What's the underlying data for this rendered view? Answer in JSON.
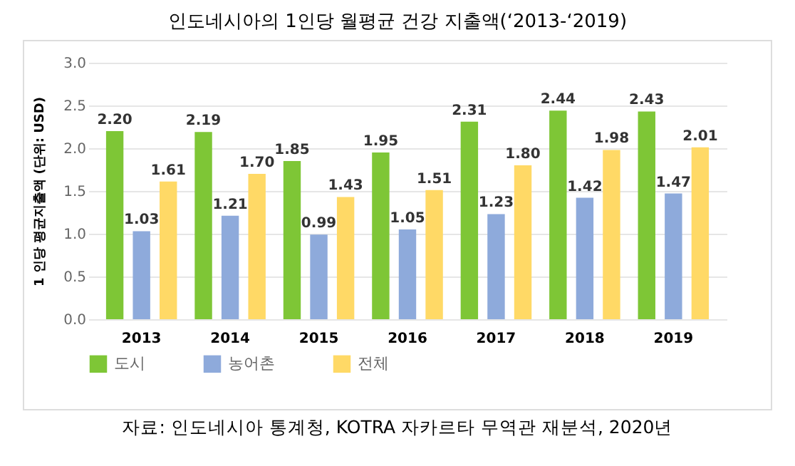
{
  "chart_data": {
    "type": "bar",
    "title": "인도네시아의 1인당 월평균 건강 지출액(‘2013-‘2019)",
    "ylabel": "1 인당 평균지출액 (단위: USD)",
    "annotations": [
      "자료: 인도네시아 통계청, KOTRA 자카르타 무역관 재분석, 2020년"
    ],
    "categories": [
      "2013",
      "2014",
      "2015",
      "2016",
      "2017",
      "2018",
      "2019"
    ],
    "series": [
      {
        "name": "도시",
        "color": "#7ec636",
        "values": [
          2.2,
          2.19,
          1.85,
          1.95,
          2.31,
          2.44,
          2.43
        ],
        "value_labels": [
          "2.20",
          "2.19",
          "1.85",
          "1.95",
          "2.31",
          "2.44",
          "2.43"
        ]
      },
      {
        "name": "농어촌",
        "color": "#8eaadb",
        "values": [
          1.03,
          1.21,
          0.99,
          1.05,
          1.23,
          1.42,
          1.47
        ],
        "value_labels": [
          "1.03",
          "1.21",
          "0.99",
          "1.05",
          "1.23",
          "1.42",
          "1.47"
        ]
      },
      {
        "name": "전체",
        "color": "#ffd966",
        "values": [
          1.61,
          1.7,
          1.43,
          1.51,
          1.8,
          1.98,
          2.01
        ],
        "value_labels": [
          "1.61",
          "1.70",
          "1.43",
          "1.51",
          "1.80",
          "1.98",
          "2.01"
        ]
      }
    ],
    "ylim": [
      0,
      3
    ],
    "yticks": [
      {
        "value": 0,
        "label": "0.0"
      },
      {
        "value": 0.5,
        "label": "0.5"
      },
      {
        "value": 1,
        "label": "1.0"
      },
      {
        "value": 1.5,
        "label": "1.5"
      },
      {
        "value": 2,
        "label": "2.0"
      },
      {
        "value": 2.5,
        "label": "2.5"
      },
      {
        "value": 3,
        "label": "3.0"
      }
    ],
    "grid": "y",
    "legend": "bottom"
  }
}
